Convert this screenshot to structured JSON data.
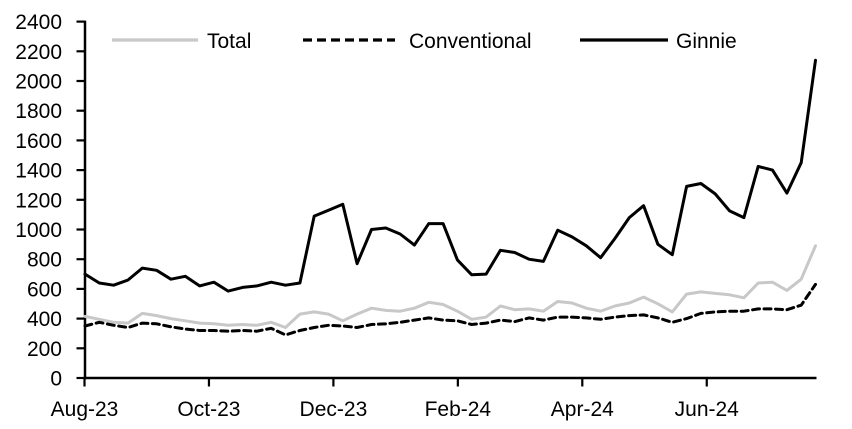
{
  "chart_data": {
    "type": "line",
    "title": "",
    "xlabel": "",
    "ylabel": "",
    "ylim": [
      0,
      2400
    ],
    "y_ticks": [
      0,
      200,
      400,
      600,
      800,
      1000,
      1200,
      1400,
      1600,
      1800,
      2000,
      2200,
      2400
    ],
    "x_tick_labels": [
      "Aug-23",
      "Oct-23",
      "Dec-23",
      "Feb-24",
      "Apr-24",
      "Jun-24"
    ],
    "x_frequency": "weekly",
    "x_range": "Aug-23 to Aug-24",
    "grid": "off",
    "legend_position": "top",
    "colors": {
      "total": "#c8c8c8",
      "conventional": "#000000",
      "ginnie": "#000000",
      "axis": "#000000"
    },
    "series": [
      {
        "name": "Total",
        "style": "solid",
        "color": "#c8c8c8",
        "values": [
          415,
          395,
          375,
          370,
          435,
          420,
          400,
          385,
          370,
          365,
          355,
          360,
          355,
          375,
          340,
          430,
          445,
          430,
          385,
          430,
          470,
          455,
          450,
          470,
          510,
          495,
          450,
          395,
          410,
          485,
          460,
          465,
          450,
          515,
          505,
          470,
          450,
          485,
          505,
          545,
          500,
          445,
          565,
          580,
          570,
          560,
          540,
          640,
          645,
          590,
          665,
          890
        ]
      },
      {
        "name": "Conventional",
        "style": "dashed",
        "color": "#000000",
        "values": [
          350,
          375,
          355,
          340,
          370,
          365,
          345,
          330,
          320,
          320,
          315,
          320,
          315,
          335,
          290,
          320,
          340,
          355,
          350,
          340,
          360,
          365,
          375,
          390,
          405,
          390,
          385,
          360,
          370,
          390,
          380,
          405,
          390,
          410,
          410,
          405,
          395,
          410,
          420,
          425,
          405,
          375,
          400,
          435,
          445,
          450,
          450,
          465,
          465,
          460,
          490,
          630
        ]
      },
      {
        "name": "Ginnie",
        "style": "solid",
        "color": "#000000",
        "values": [
          700,
          640,
          625,
          660,
          740,
          725,
          665,
          685,
          620,
          645,
          585,
          610,
          620,
          645,
          625,
          640,
          1090,
          1130,
          1170,
          770,
          1000,
          1010,
          970,
          895,
          1040,
          1040,
          795,
          695,
          700,
          860,
          845,
          800,
          785,
          995,
          950,
          890,
          810,
          940,
          1080,
          1160,
          900,
          830,
          1290,
          1310,
          1240,
          1125,
          1080,
          1425,
          1400,
          1245,
          1450,
          2140
        ]
      }
    ]
  }
}
